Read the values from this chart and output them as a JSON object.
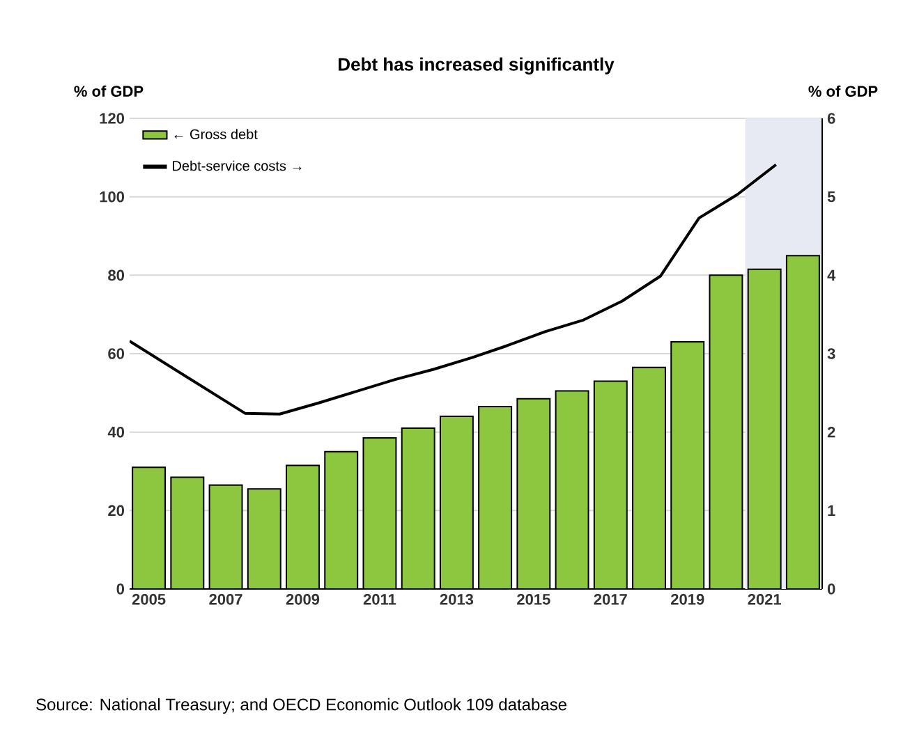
{
  "chart_data": {
    "type": "bar",
    "title": "Debt has increased significantly",
    "ylabel": "% of GDP",
    "y2label": "% of GDP",
    "x": [
      2005,
      2006,
      2007,
      2008,
      2009,
      2010,
      2011,
      2012,
      2013,
      2014,
      2015,
      2016,
      2017,
      2018,
      2019,
      2020,
      2021,
      2022
    ],
    "series": [
      {
        "name": "← Gross debt",
        "color": "#8dc63f",
        "values": [
          31,
          28.5,
          26.5,
          25.5,
          31.5,
          35,
          38.5,
          41,
          44,
          46.5,
          48.5,
          50.5,
          53,
          56.5,
          63,
          80,
          81.5,
          85
        ]
      },
      {
        "name": "Debt-service costs →",
        "type": "line",
        "axis": "y2",
        "color": "#000000",
        "x": [
          2004.5,
          2007.5,
          2008.4,
          2009.4,
          2010.4,
          2011.4,
          2012.4,
          2013.4,
          2014.3,
          2015.3,
          2016.3,
          2017.3,
          2018.3,
          2019.3,
          2020.3,
          2021.3
        ],
        "values": [
          3.16,
          2.24,
          2.23,
          2.37,
          2.52,
          2.67,
          2.8,
          2.95,
          3.1,
          3.28,
          3.43,
          3.67,
          3.99,
          4.73,
          5.03,
          5.41
        ]
      }
    ],
    "xlim": [
      2004.5,
      2022.5
    ],
    "xticks": [
      2005,
      2007,
      2009,
      2011,
      2013,
      2015,
      2017,
      2019,
      2021
    ],
    "ylim": [
      0,
      120
    ],
    "yticks": [
      0,
      20,
      40,
      60,
      80,
      100,
      120
    ],
    "y2lim": [
      0,
      6
    ],
    "y2ticks": [
      0,
      1,
      2,
      3,
      4,
      5,
      6
    ],
    "bands": [
      {
        "axis": "x",
        "from": 2020.5,
        "to": 2022.5,
        "color": "#e8eaf3"
      }
    ],
    "grid": "y",
    "legend": "top left",
    "annotations": [
      "Source: National Treasury; and OECD Economic Outlook 109 database"
    ]
  }
}
